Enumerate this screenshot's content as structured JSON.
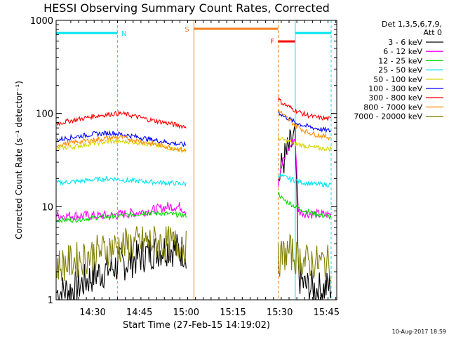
{
  "chart_data": {
    "type": "line",
    "title": "HESSI Observing Summary Count Rates, Corrected",
    "xlabel": "Start Time (27-Feb-15 14:19:02)",
    "ylabel": "Corrected Count Rate (s⁻¹ detector⁻¹)",
    "yscale": "log",
    "ylim": [
      1,
      1000
    ],
    "xlim_minutes": [
      14.3,
      104.3
    ],
    "x_ticks": [
      "14:30",
      "14:45",
      "15:00",
      "15:15",
      "15:30",
      "15:45"
    ],
    "x_tick_minutes": [
      26.0,
      41.0,
      56.0,
      71.0,
      86.0,
      101.0
    ],
    "y_ticks": [
      "1",
      "10",
      "100",
      "1000"
    ],
    "y_tick_values": [
      1,
      10,
      100,
      1000
    ],
    "grid": false,
    "legend_position": "right",
    "legend_header": [
      "Det 1,3,5,6,7,9,",
      "Att 0"
    ],
    "footer_date": "10-Aug-2017 18:59",
    "annotations": {
      "night_label": "N",
      "saa_label": "S",
      "flare_label": "F",
      "night_color": "#00e5ee",
      "saa_color": "#f07f1e",
      "flare_color": "#ff0000",
      "night1_minutes": [
        14.3,
        34.0
      ],
      "night2_minutes": [
        91.0,
        102.5
      ],
      "saa_minutes": [
        58.5,
        85.5
      ],
      "flare_minutes": [
        85.5,
        91.0
      ]
    },
    "series": [
      {
        "name": "3 - 6 keV",
        "color": "#000000",
        "seg1": {
          "x": [
            14.5,
            20,
            26,
            32,
            38,
            44,
            50,
            56
          ],
          "y": [
            1.2,
            1.3,
            1.8,
            2.2,
            2.6,
            3.2,
            3.6,
            3.3
          ]
        },
        "seg2": {
          "x": [
            85.5,
            87,
            89,
            91,
            92,
            94,
            97,
            100,
            102.5
          ],
          "y": [
            18,
            30,
            42,
            55,
            1.8,
            1.4,
            1.3,
            1.3,
            1.4
          ]
        }
      },
      {
        "name": "6 - 12 keV",
        "color": "#ff00ff",
        "seg1": {
          "x": [
            14.5,
            20,
            26,
            32,
            38,
            44,
            50,
            54,
            56
          ],
          "y": [
            8,
            8,
            8,
            8,
            8.5,
            9,
            10,
            10,
            9
          ]
        },
        "seg2": {
          "x": [
            85.5,
            87,
            89,
            91,
            92,
            94,
            97,
            100,
            102.5
          ],
          "y": [
            18,
            30,
            42,
            55,
            9,
            8.5,
            8.3,
            8.2,
            8.2
          ]
        }
      },
      {
        "name": "12 - 25 keV",
        "color": "#00dd00",
        "seg1": {
          "x": [
            14.5,
            20,
            26,
            32,
            38,
            44,
            50,
            56
          ],
          "y": [
            7.2,
            7.2,
            7.6,
            7.9,
            8.2,
            8.6,
            8.4,
            8.0
          ]
        },
        "seg2": {
          "x": [
            85.5,
            87,
            89,
            91,
            94,
            97,
            100,
            102.5
          ],
          "y": [
            14,
            12,
            11,
            10,
            9,
            8.5,
            8.0,
            7.8
          ]
        }
      },
      {
        "name": "25 - 50 keV",
        "color": "#00e5ee",
        "seg1": {
          "x": [
            14.5,
            20,
            26,
            32,
            38,
            44,
            50,
            56
          ],
          "y": [
            18,
            18.5,
            19.5,
            20,
            19,
            18.5,
            18,
            17.5
          ]
        },
        "seg2": {
          "x": [
            85.5,
            87,
            89,
            91,
            94,
            97,
            100,
            102.5
          ],
          "y": [
            22,
            21,
            20,
            19,
            18,
            17.5,
            17.3,
            17.2
          ]
        }
      },
      {
        "name": "50 - 100 keV",
        "color": "#d7d700",
        "seg1": {
          "x": [
            14.5,
            20,
            26,
            32,
            38,
            44,
            50,
            56
          ],
          "y": [
            42,
            44,
            48,
            50,
            50,
            47,
            43,
            40
          ]
        },
        "seg2": {
          "x": [
            85.5,
            87,
            89,
            91,
            94,
            97,
            100,
            102.5
          ],
          "y": [
            55,
            52,
            50,
            47,
            45,
            43,
            42,
            42
          ]
        }
      },
      {
        "name": "100 - 300 keV",
        "color": "#0000ff",
        "seg1": {
          "x": [
            14.5,
            20,
            26,
            32,
            38,
            44,
            50,
            56
          ],
          "y": [
            52,
            56,
            60,
            62,
            58,
            53,
            49,
            46
          ]
        },
        "seg2": {
          "x": [
            85.5,
            87,
            89,
            91,
            94,
            97,
            100,
            102.5
          ],
          "y": [
            105,
            95,
            88,
            80,
            74,
            70,
            67,
            65
          ]
        }
      },
      {
        "name": "300 - 800 keV",
        "color": "#ff0000",
        "seg1": {
          "x": [
            14.5,
            20,
            26,
            32,
            35,
            38,
            44,
            50,
            56
          ],
          "y": [
            78,
            85,
            93,
            99,
            100,
            96,
            86,
            79,
            72
          ]
        },
        "seg2": {
          "x": [
            85.5,
            87,
            89,
            91,
            94,
            97,
            100,
            102.5
          ],
          "y": [
            145,
            128,
            118,
            108,
            98,
            92,
            89,
            87
          ]
        }
      },
      {
        "name": "800 - 7000 keV",
        "color": "#ff8c00",
        "seg1": {
          "x": [
            14.5,
            20,
            26,
            32,
            35,
            38,
            44,
            50,
            56
          ],
          "y": [
            46,
            49,
            52,
            55,
            56,
            53,
            48,
            44,
            40
          ]
        },
        "seg2": {
          "x": [
            85.5,
            87,
            89,
            91,
            94,
            97,
            100,
            102.5
          ],
          "y": [
            110,
            98,
            85,
            75,
            65,
            60,
            57,
            55
          ]
        }
      },
      {
        "name": "7000 - 20000 keV",
        "color": "#808000",
        "seg1": {
          "x": [
            14.5,
            20,
            26,
            32,
            38,
            44,
            50,
            56
          ],
          "y": [
            2.3,
            2.6,
            3.1,
            3.6,
            3.9,
            4.2,
            4.0,
            3.8
          ]
        },
        "seg2": {
          "x": [
            85.5,
            87,
            89,
            91,
            94,
            97,
            100,
            102.5
          ],
          "y": [
            2.6,
            3.0,
            3.3,
            2.9,
            2.6,
            2.5,
            2.5,
            2.5
          ]
        }
      }
    ]
  }
}
